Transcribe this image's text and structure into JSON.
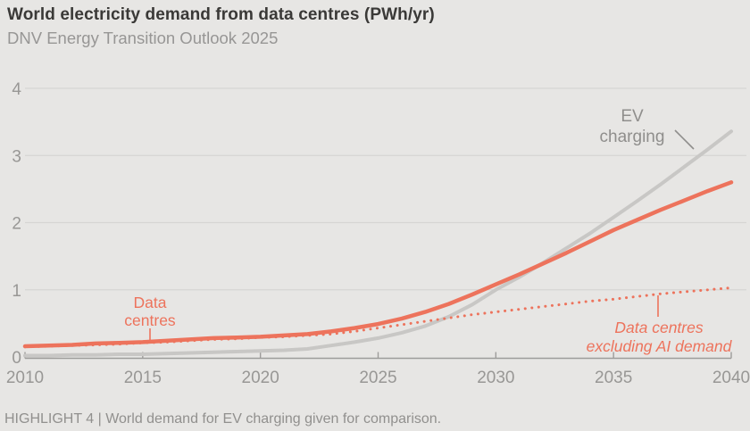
{
  "header": {
    "title": "World electricity demand from data centres (PWh/yr)",
    "subtitle": "DNV Energy Transition Outlook 2025"
  },
  "footer": {
    "caption": "HIGHLIGHT 4 | World demand for EV charging given for comparison."
  },
  "colors": {
    "background": "#e7e6e4",
    "accent_orange": "#ed735c",
    "line_gray": "#c8c7c5",
    "grid": "#d6d5d3",
    "axis": "#9d9c9a",
    "tick_text": "#98979",
    "title_text": "#3a3937",
    "muted_text": "#91908e"
  },
  "chart_data": {
    "type": "line",
    "title": "World electricity demand from data centres (PWh/yr)",
    "subtitle": "DNV Energy Transition Outlook 2025",
    "xlabel": "",
    "ylabel": "PWh/yr",
    "xlim": [
      2010,
      2040
    ],
    "ylim": [
      0,
      4
    ],
    "x_ticks": [
      2010,
      2015,
      2020,
      2025,
      2030,
      2035,
      2040
    ],
    "y_ticks": [
      0,
      1,
      2,
      3,
      4
    ],
    "grid": "horizontal",
    "legend": "inline-annotations",
    "x": [
      2010,
      2011,
      2012,
      2013,
      2014,
      2015,
      2016,
      2017,
      2018,
      2019,
      2020,
      2021,
      2022,
      2023,
      2024,
      2025,
      2026,
      2027,
      2028,
      2029,
      2030,
      2031,
      2032,
      2033,
      2034,
      2035,
      2036,
      2037,
      2038,
      2039,
      2040
    ],
    "series": [
      {
        "name": "EV charging",
        "style": "solid",
        "color": "#c8c7c5",
        "width": 4,
        "values": [
          0.02,
          0.02,
          0.03,
          0.03,
          0.04,
          0.04,
          0.05,
          0.06,
          0.07,
          0.08,
          0.09,
          0.1,
          0.12,
          0.17,
          0.22,
          0.28,
          0.36,
          0.46,
          0.6,
          0.78,
          1.0,
          1.19,
          1.4,
          1.62,
          1.84,
          2.08,
          2.32,
          2.57,
          2.83,
          3.09,
          3.36
        ]
      },
      {
        "name": "Data centres excluding AI demand",
        "style": "dotted",
        "color": "#ed735c",
        "width": 3,
        "values": [
          0.15,
          0.16,
          0.17,
          0.18,
          0.19,
          0.21,
          0.22,
          0.24,
          0.26,
          0.27,
          0.29,
          0.3,
          0.32,
          0.34,
          0.38,
          0.43,
          0.48,
          0.53,
          0.58,
          0.63,
          0.67,
          0.71,
          0.75,
          0.79,
          0.83,
          0.86,
          0.9,
          0.94,
          0.97,
          1.0,
          1.03
        ]
      },
      {
        "name": "Data centres",
        "style": "solid",
        "color": "#ed735c",
        "width": 4.5,
        "values": [
          0.16,
          0.17,
          0.18,
          0.2,
          0.21,
          0.22,
          0.24,
          0.26,
          0.28,
          0.29,
          0.3,
          0.32,
          0.34,
          0.38,
          0.43,
          0.49,
          0.57,
          0.67,
          0.79,
          0.93,
          1.08,
          1.23,
          1.39,
          1.55,
          1.72,
          1.89,
          2.04,
          2.19,
          2.33,
          2.47,
          2.6
        ]
      }
    ],
    "annotations": [
      {
        "id": "ev",
        "lines": [
          "EV",
          "charging"
        ],
        "series": "EV charging"
      },
      {
        "id": "dc",
        "lines": [
          "Data",
          "centres"
        ],
        "series": "Data centres"
      },
      {
        "id": "dcx",
        "lines": [
          "Data centres",
          "excluding AI demand"
        ],
        "series": "Data centres excluding AI demand"
      }
    ]
  }
}
